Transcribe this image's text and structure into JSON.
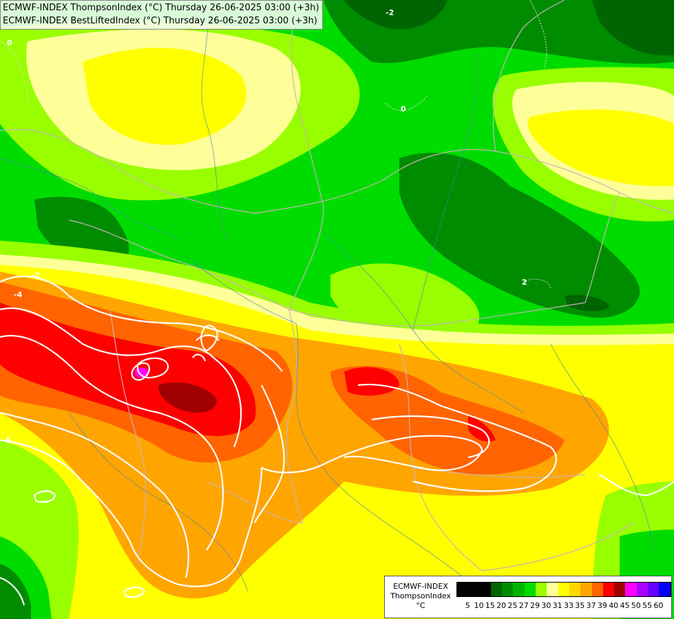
{
  "title": {
    "line1": "ECMWF-INDEX ThompsonIndex (°C) Thursday 26-06-2025 03:00 (+3h)",
    "line2": "ECMWF-INDEX BestLiftedIndex (°C) Thursday 26-06-2025 03:00 (+3h)"
  },
  "legend": {
    "model": "ECMWF-INDEX",
    "parameter": "ThompsonIndex",
    "unit": "°C",
    "ticks": [
      "5",
      "10",
      "15",
      "20",
      "25",
      "27",
      "29",
      "30",
      "31",
      "33",
      "35",
      "37",
      "39",
      "40",
      "45",
      "50",
      "55",
      "60"
    ],
    "colors": [
      "#000000",
      "#000000",
      "#000000",
      "#006400",
      "#008c00",
      "#00b400",
      "#00dc00",
      "#99ff00",
      "#ffff99",
      "#ffff00",
      "#ffd700",
      "#ffa500",
      "#ff6400",
      "#ff0000",
      "#a00000",
      "#ff00ff",
      "#aa00ff",
      "#6600ff",
      "#0000ff"
    ]
  },
  "contour_labels": [
    "-5",
    "-4",
    "-2",
    "0",
    "2",
    "-2",
    "0"
  ],
  "colors": {
    "white_contour": "#ffffff",
    "border": "#c8b4b4",
    "river": "#4682b4"
  }
}
